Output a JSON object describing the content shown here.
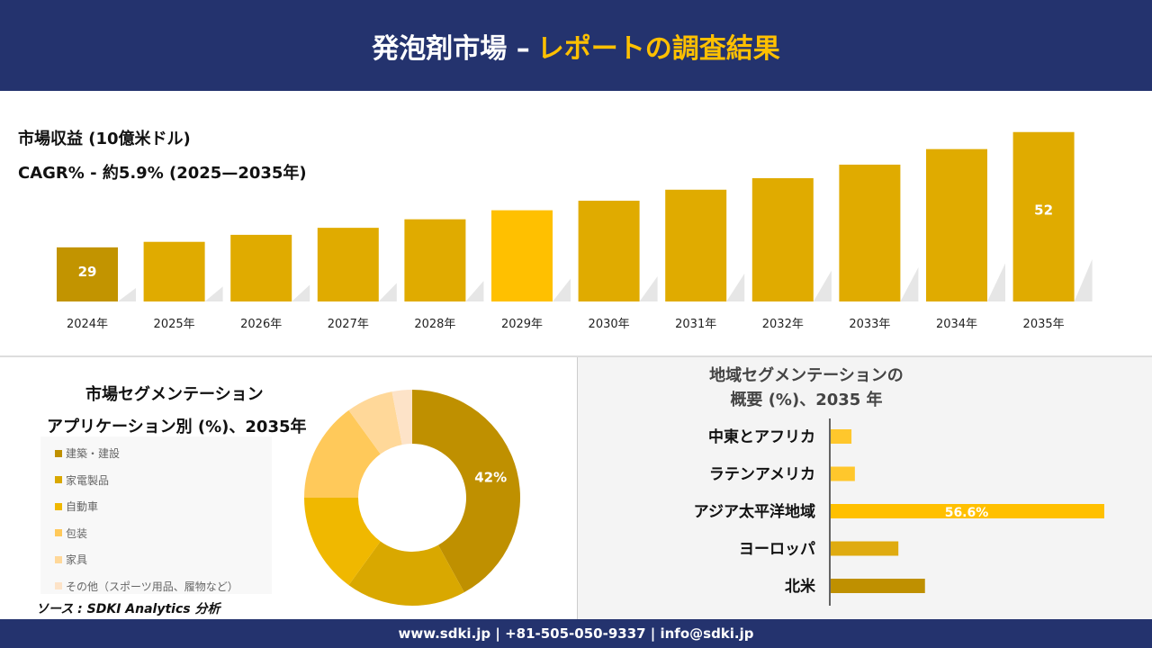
{
  "header": {
    "title_main": "発泡剤市場 –",
    "title_accent": "レポートの調査結果"
  },
  "revenue": {
    "label": "市場収益 (10億米ドル)",
    "cagr": "CAGR% - 約5.9% (2025—2035年)"
  },
  "chart_data": [
    {
      "type": "bar",
      "categories": [
        "2024年",
        "2025年",
        "2026年",
        "2027年",
        "2028年",
        "2029年",
        "2030年",
        "2031年",
        "2032年",
        "2033年",
        "2034年",
        "2035年"
      ],
      "values": [
        29,
        30.1,
        31.5,
        32.9,
        34.6,
        36.4,
        38.3,
        40.5,
        42.8,
        45.5,
        48.6,
        52
      ],
      "data_labels": {
        "0": "29",
        "11": "52"
      },
      "ylabel": "市場収益 (10億米ドル)",
      "grid": false,
      "colors": {
        "default": "#e0ab00",
        "first": "#c29400",
        "highlight": "#ffc000"
      }
    },
    {
      "type": "pie",
      "title": "市場セグメンテーション アプリケーション別 (%)、2035年",
      "labels": [
        "建築・建設",
        "家電製品",
        "自動車",
        "包装",
        "家具",
        "その他（スポーツ用品、履物など）"
      ],
      "values": [
        42,
        18,
        15,
        15,
        7,
        3
      ],
      "data_labels": {
        "0": "42%"
      },
      "legend": "left",
      "colors": [
        "#bf9000",
        "#d9a800",
        "#f0b800",
        "#ffc95a",
        "#ffd899",
        "#fde3c8"
      ]
    },
    {
      "type": "bar",
      "orientation": "horizontal",
      "title": "地域セグメンテーションの 概要 (%)、2035 年",
      "categories": [
        "中東とアフリカ",
        "ラテンアメリカ",
        "アジア太平洋地域",
        "ヨーロッパ",
        "北米"
      ],
      "values": [
        4.3,
        5,
        56.6,
        14,
        19.5
      ],
      "data_labels": {
        "2": "56.6%"
      },
      "colors": [
        "#ffc72c",
        "#ffc72c",
        "#ffc000",
        "#dfab10",
        "#bf9000"
      ]
    }
  ],
  "segment": {
    "title1": "市場セグメンテーション",
    "title2": "アプリケーション別 (%)、2035年"
  },
  "region": {
    "title1": "地域セグメンテーションの",
    "title2": "概要 (%)、2035 年"
  },
  "source": "ソース : SDKI Analytics 分析",
  "footer": "www.sdki.jp | +81-505-050-9337 | info@sdki.jp"
}
